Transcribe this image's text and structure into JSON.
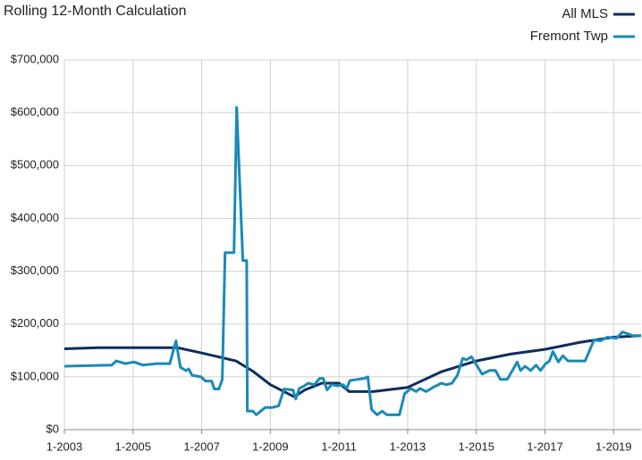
{
  "chart_data": {
    "type": "line",
    "title": "Rolling 12-Month Calculation",
    "legend": "top-right",
    "grid": true,
    "xlim": [
      2003,
      2019.8
    ],
    "xticks": [
      {
        "value": 2003,
        "label": "1-2003"
      },
      {
        "value": 2005,
        "label": "1-2005"
      },
      {
        "value": 2007,
        "label": "1-2007"
      },
      {
        "value": 2009,
        "label": "1-2009"
      },
      {
        "value": 2011,
        "label": "1-2011"
      },
      {
        "value": 2013,
        "label": "1-2013"
      },
      {
        "value": 2015,
        "label": "1-2015"
      },
      {
        "value": 2017,
        "label": "1-2017"
      },
      {
        "value": 2019,
        "label": "1-2019"
      }
    ],
    "ylim": [
      0,
      700000
    ],
    "yticks": [
      {
        "value": 0,
        "label": "$0"
      },
      {
        "value": 100000,
        "label": "$100,000"
      },
      {
        "value": 200000,
        "label": "$200,000"
      },
      {
        "value": 300000,
        "label": "$300,000"
      },
      {
        "value": 400000,
        "label": "$400,000"
      },
      {
        "value": 500000,
        "label": "$500,000"
      },
      {
        "value": 600000,
        "label": "$600,000"
      },
      {
        "value": 700000,
        "label": "$700,000"
      }
    ],
    "series": [
      {
        "name": "All MLS",
        "color": "#0d2d5e",
        "x": [
          2003,
          2004,
          2005,
          2006.3,
          2007,
          2008,
          2008.5,
          2009,
          2009.7,
          2010,
          2010.5,
          2011,
          2011.3,
          2012,
          2013,
          2014,
          2015,
          2016,
          2017,
          2018,
          2019,
          2019.8
        ],
        "values": [
          153000,
          155000,
          155000,
          155000,
          145000,
          130000,
          110000,
          85000,
          62000,
          75000,
          88000,
          88000,
          72000,
          72000,
          80000,
          110000,
          130000,
          143000,
          152000,
          165000,
          175000,
          178000
        ]
      },
      {
        "name": "Fremont Twp",
        "color": "#1a8ab8",
        "x": [
          2003,
          2004.38,
          2004.51,
          2004.77,
          2005.03,
          2005.29,
          2005.68,
          2006.07,
          2006.25,
          2006.38,
          2006.54,
          2006.62,
          2006.72,
          2006.98,
          2007.11,
          2007.29,
          2007.37,
          2007.5,
          2007.6,
          2007.68,
          2007.94,
          2008.02,
          2008.2,
          2008.31,
          2008.33,
          2008.49,
          2008.59,
          2008.72,
          2008.85,
          2009.06,
          2009.24,
          2009.4,
          2009.66,
          2009.74,
          2009.84,
          2009.97,
          2010.1,
          2010.28,
          2010.44,
          2010.54,
          2010.65,
          2010.78,
          2010.96,
          2011.12,
          2011.22,
          2011.32,
          2011.53,
          2011.74,
          2011.84,
          2011.95,
          2012.11,
          2012.26,
          2012.39,
          2012.76,
          2012.91,
          2013.09,
          2013.25,
          2013.35,
          2013.54,
          2013.74,
          2013.98,
          2014.13,
          2014.29,
          2014.45,
          2014.6,
          2014.71,
          2014.86,
          2015.17,
          2015.38,
          2015.56,
          2015.7,
          2015.9,
          2016.06,
          2016.19,
          2016.29,
          2016.42,
          2016.58,
          2016.74,
          2016.87,
          2017.02,
          2017.13,
          2017.23,
          2017.39,
          2017.52,
          2017.67,
          2018.17,
          2018.43,
          2018.61,
          2018.82,
          2019.08,
          2019.26,
          2019.55,
          2019.8
        ],
        "values": [
          120000,
          122000,
          130000,
          125000,
          128000,
          122000,
          125000,
          125000,
          168000,
          118000,
          112000,
          115000,
          103000,
          100000,
          92000,
          92000,
          77000,
          77000,
          95000,
          335000,
          335000,
          610000,
          320000,
          320000,
          35000,
          35000,
          28000,
          35000,
          42000,
          42000,
          45000,
          77000,
          75000,
          58000,
          78000,
          82000,
          88000,
          85000,
          97000,
          97000,
          75000,
          85000,
          83000,
          85000,
          78000,
          93000,
          95000,
          97000,
          100000,
          38000,
          28000,
          35000,
          28000,
          28000,
          68000,
          78000,
          72000,
          78000,
          72000,
          80000,
          88000,
          85000,
          88000,
          103000,
          135000,
          132000,
          138000,
          105000,
          112000,
          112000,
          95000,
          95000,
          113000,
          128000,
          112000,
          120000,
          112000,
          122000,
          112000,
          125000,
          130000,
          148000,
          128000,
          140000,
          130000,
          130000,
          170000,
          168000,
          175000,
          173000,
          185000,
          178000,
          178000
        ]
      }
    ]
  }
}
